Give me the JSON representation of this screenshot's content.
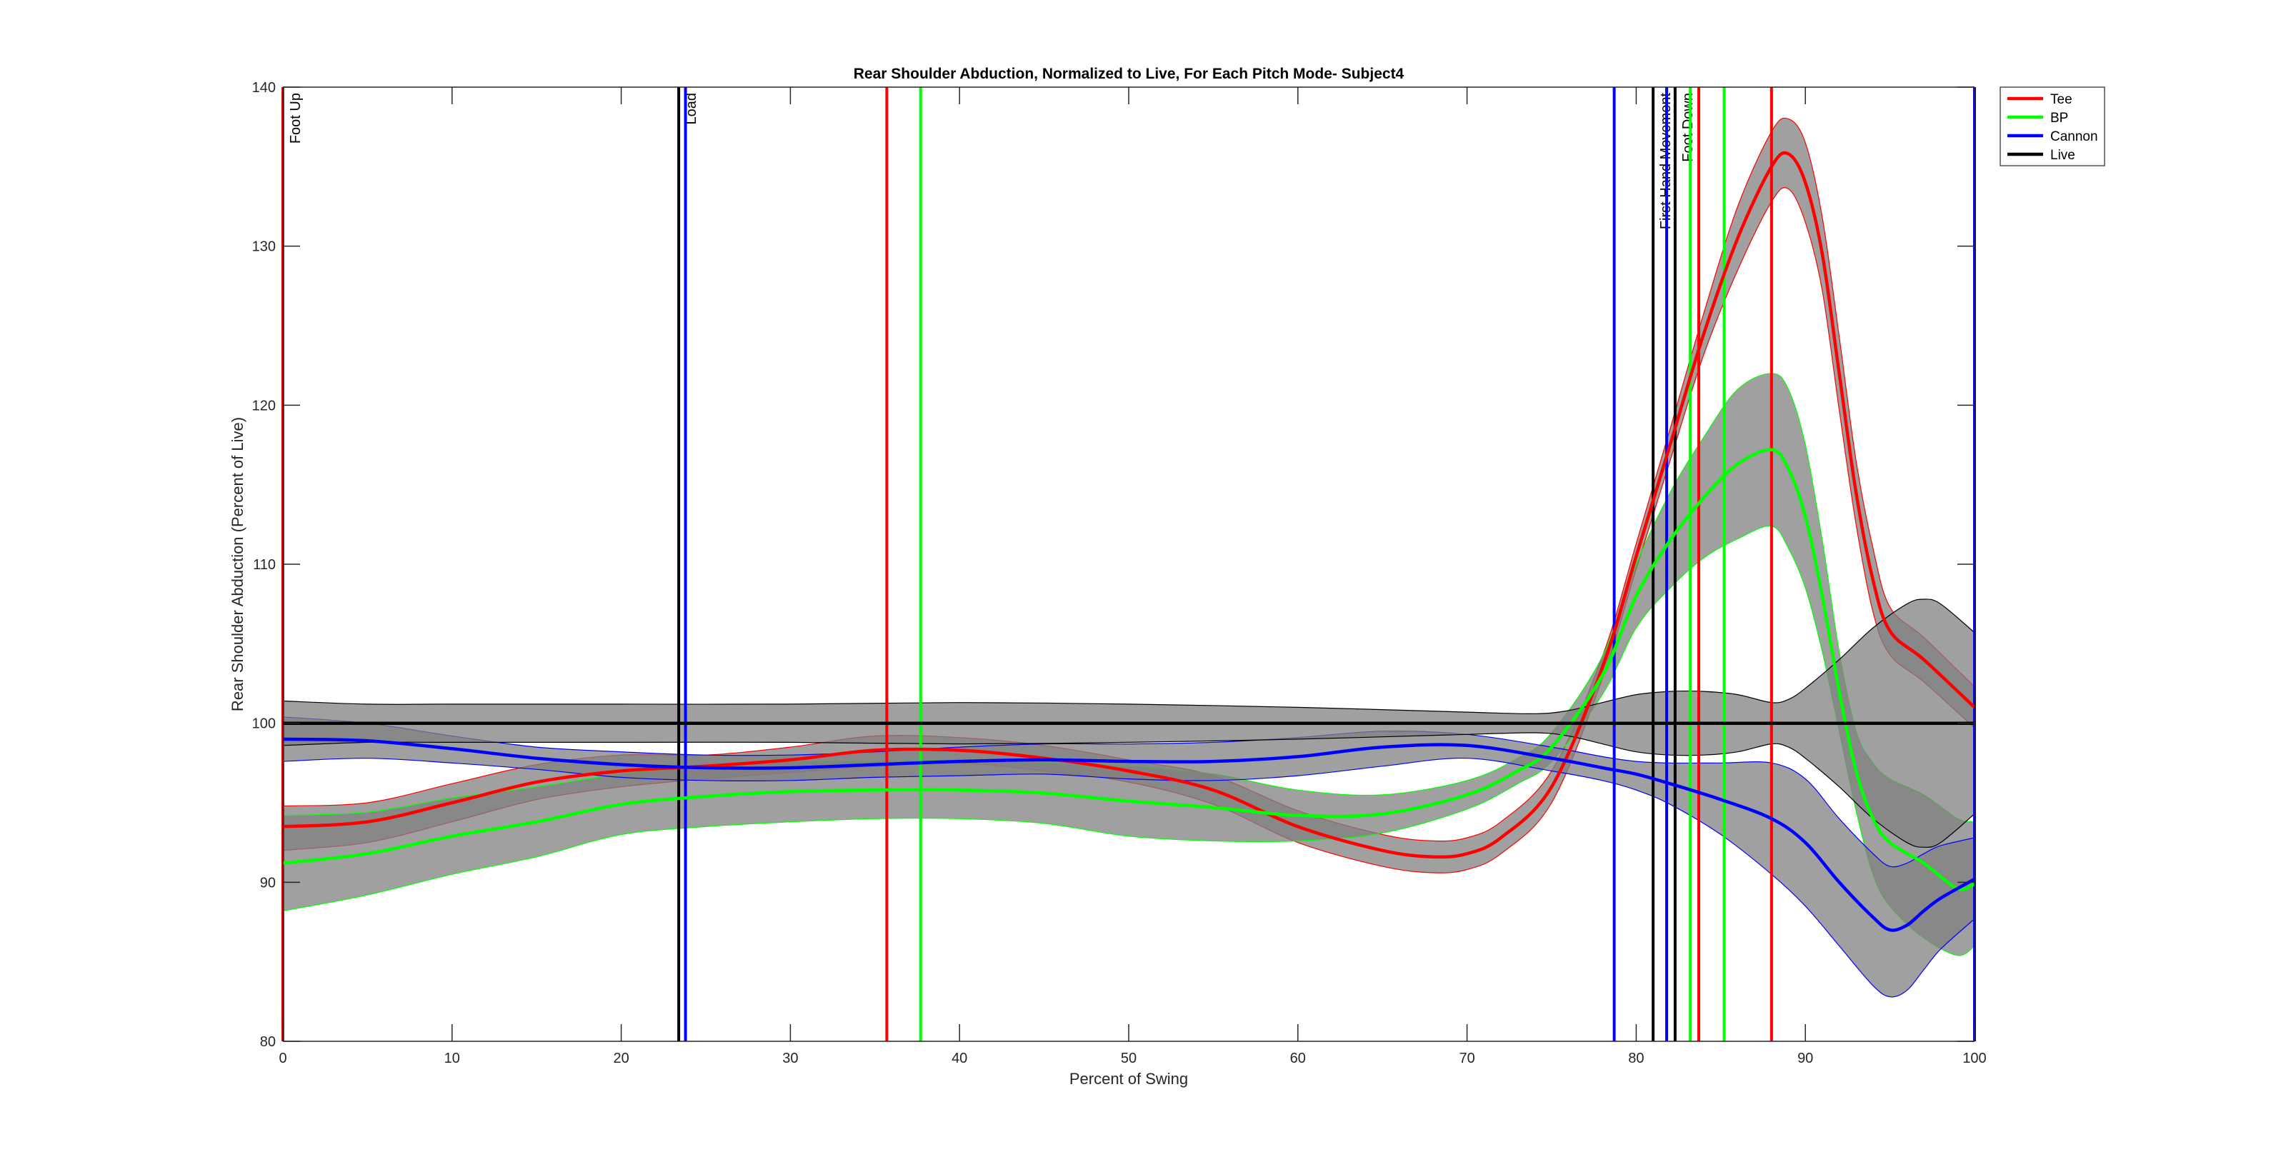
{
  "chart_data": {
    "type": "line",
    "title": "Rear Shoulder Abduction, Normalized to Live, For Each Pitch Mode- Subject4",
    "xlabel": "Percent of Swing",
    "ylabel": "Rear Shoulder Abduction (Percent of Live)",
    "xlim": [
      0,
      100
    ],
    "ylim": [
      80,
      140
    ],
    "xticks": [
      0,
      10,
      20,
      30,
      40,
      50,
      60,
      70,
      80,
      90,
      100
    ],
    "yticks": [
      80,
      90,
      100,
      110,
      120,
      130,
      140
    ],
    "grid": false,
    "legend_position": "top-right",
    "band_color": "#808080",
    "series": [
      {
        "name": "Tee",
        "color": "#ff0000",
        "x": [
          0,
          5,
          10,
          15,
          20,
          25,
          30,
          35,
          40,
          45,
          50,
          55,
          60,
          65,
          68,
          70,
          72,
          75,
          78,
          80,
          82,
          84,
          86,
          88,
          89,
          90,
          91,
          92,
          93,
          94,
          95,
          97,
          100
        ],
        "mean": [
          93.5,
          93.8,
          95.0,
          96.3,
          97.0,
          97.3,
          97.7,
          98.3,
          98.3,
          97.8,
          97.0,
          95.8,
          93.5,
          92.0,
          91.6,
          91.8,
          92.8,
          96.0,
          103.5,
          110.5,
          117.5,
          124.5,
          130.5,
          135.0,
          135.8,
          134.0,
          129.5,
          122.0,
          114.5,
          109.0,
          105.8,
          104.0,
          101.0
        ],
        "upper": [
          94.8,
          95.0,
          96.2,
          97.4,
          98.0,
          98.0,
          98.5,
          99.2,
          99.1,
          98.6,
          97.7,
          96.7,
          94.5,
          93.0,
          92.6,
          92.8,
          93.8,
          97.0,
          104.2,
          111.3,
          118.5,
          125.8,
          132.5,
          137.2,
          138.0,
          136.5,
          131.8,
          124.3,
          116.5,
          111.0,
          107.3,
          105.4,
          102.3
        ],
        "lower": [
          92.0,
          92.5,
          93.8,
          95.2,
          96.0,
          96.5,
          96.9,
          97.3,
          97.5,
          97.0,
          96.3,
          94.9,
          92.5,
          91.0,
          90.6,
          90.8,
          91.8,
          95.0,
          102.8,
          109.7,
          116.5,
          123.2,
          128.5,
          132.8,
          133.6,
          131.5,
          127.2,
          119.7,
          112.5,
          107.0,
          104.3,
          102.6,
          99.7
        ]
      },
      {
        "name": "BP",
        "color": "#00ff00",
        "x": [
          0,
          5,
          10,
          15,
          20,
          25,
          30,
          35,
          40,
          45,
          50,
          55,
          60,
          65,
          70,
          73,
          75,
          78,
          80,
          82,
          84,
          86,
          88,
          89,
          90,
          91,
          92,
          93,
          94,
          95,
          97,
          99,
          100
        ],
        "mean": [
          91.2,
          91.8,
          92.9,
          93.8,
          94.9,
          95.4,
          95.7,
          95.8,
          95.8,
          95.6,
          95.1,
          94.7,
          94.2,
          94.3,
          95.5,
          97.0,
          98.5,
          103.0,
          108.0,
          111.5,
          114.2,
          116.3,
          117.2,
          116.0,
          113.0,
          108.0,
          102.0,
          97.0,
          94.0,
          92.5,
          91.2,
          89.6,
          89.9
        ],
        "upper": [
          94.2,
          94.4,
          95.3,
          96.0,
          96.8,
          97.3,
          97.6,
          97.6,
          97.7,
          97.5,
          97.3,
          96.8,
          95.8,
          95.5,
          96.4,
          97.8,
          99.4,
          104.2,
          110.0,
          114.5,
          118.0,
          121.0,
          122.0,
          121.0,
          117.5,
          111.5,
          104.5,
          99.5,
          97.5,
          96.5,
          95.5,
          94.0,
          93.8
        ],
        "lower": [
          88.2,
          89.2,
          90.5,
          91.6,
          93.0,
          93.5,
          93.8,
          94.0,
          94.0,
          93.7,
          92.9,
          92.6,
          92.6,
          93.1,
          94.6,
          96.2,
          97.6,
          101.8,
          106.0,
          108.5,
          110.4,
          111.6,
          112.4,
          111.0,
          108.5,
          104.5,
          99.5,
          94.5,
          90.5,
          88.5,
          86.5,
          85.4,
          86.0
        ]
      },
      {
        "name": "Cannon",
        "color": "#0000ff",
        "x": [
          0,
          5,
          10,
          15,
          20,
          25,
          30,
          35,
          40,
          45,
          50,
          55,
          60,
          65,
          70,
          75,
          78,
          80,
          82,
          85,
          88,
          90,
          92,
          94,
          95,
          96,
          97,
          98,
          100
        ],
        "mean": [
          99.0,
          98.9,
          98.4,
          97.8,
          97.4,
          97.2,
          97.2,
          97.4,
          97.6,
          97.7,
          97.6,
          97.6,
          97.9,
          98.5,
          98.6,
          97.8,
          97.2,
          96.8,
          96.2,
          95.2,
          94.0,
          92.5,
          90.0,
          87.8,
          87.0,
          87.3,
          88.2,
          89.0,
          90.2
        ],
        "upper": [
          100.4,
          100.0,
          99.2,
          98.5,
          98.2,
          98.0,
          98.0,
          98.2,
          98.5,
          98.7,
          98.7,
          98.8,
          99.1,
          99.5,
          99.3,
          98.5,
          97.9,
          97.6,
          97.5,
          97.5,
          97.5,
          96.5,
          94.0,
          91.8,
          91.0,
          91.2,
          91.8,
          92.3,
          92.8
        ],
        "lower": [
          97.6,
          97.8,
          97.5,
          97.1,
          96.6,
          96.4,
          96.4,
          96.6,
          96.7,
          96.8,
          96.5,
          96.4,
          96.7,
          97.3,
          97.8,
          97.0,
          96.4,
          95.8,
          94.9,
          93.0,
          90.5,
          88.5,
          86.0,
          83.5,
          82.8,
          83.2,
          84.5,
          85.8,
          87.7
        ]
      },
      {
        "name": "Live",
        "color": "#000000",
        "x": [
          0,
          5,
          10,
          20,
          30,
          40,
          50,
          60,
          70,
          74,
          76,
          78,
          80,
          82,
          84,
          86,
          88,
          89,
          90,
          92,
          94,
          96,
          97,
          98,
          100
        ],
        "mean": [
          100,
          100,
          100,
          100,
          100,
          100,
          100,
          100,
          100,
          100,
          100,
          100,
          100,
          100,
          100,
          100,
          100,
          100,
          100,
          100,
          100,
          100,
          100,
          100,
          100
        ],
        "upper": [
          101.4,
          101.2,
          101.2,
          101.2,
          101.2,
          101.3,
          101.2,
          101.0,
          100.7,
          100.6,
          100.8,
          101.3,
          101.8,
          102.0,
          102.0,
          101.8,
          101.3,
          101.5,
          102.2,
          104.0,
          106.0,
          107.5,
          107.8,
          107.5,
          105.7
        ],
        "lower": [
          98.6,
          98.8,
          98.8,
          98.8,
          98.8,
          98.7,
          98.8,
          99.0,
          99.3,
          99.4,
          99.2,
          98.7,
          98.2,
          98.0,
          98.0,
          98.2,
          98.7,
          98.5,
          97.8,
          96.0,
          94.0,
          92.5,
          92.2,
          92.5,
          94.3
        ]
      }
    ],
    "event_lines": [
      {
        "series": "Live",
        "x": 0,
        "label": "Foot Up"
      },
      {
        "series": "Tee",
        "x": 0,
        "label": ""
      },
      {
        "series": "Live",
        "x": 23.4,
        "label": "Load"
      },
      {
        "series": "Cannon",
        "x": 23.8,
        "label": ""
      },
      {
        "series": "Tee",
        "x": 35.7,
        "label": ""
      },
      {
        "series": "BP",
        "x": 37.7,
        "label": ""
      },
      {
        "series": "Cannon",
        "x": 78.7,
        "label": ""
      },
      {
        "series": "Live",
        "x": 81.0,
        "label": "First Hand Movement"
      },
      {
        "series": "Cannon",
        "x": 81.8,
        "label": ""
      },
      {
        "series": "Live",
        "x": 82.3,
        "label": "Foot Down"
      },
      {
        "series": "BP",
        "x": 83.2,
        "label": ""
      },
      {
        "series": "Tee",
        "x": 83.7,
        "label": ""
      },
      {
        "series": "BP",
        "x": 85.2,
        "label": ""
      },
      {
        "series": "Tee",
        "x": 88.0,
        "label": ""
      },
      {
        "series": "Live",
        "x": 100,
        "label": ""
      },
      {
        "series": "Cannon",
        "x": 100,
        "label": ""
      }
    ]
  }
}
